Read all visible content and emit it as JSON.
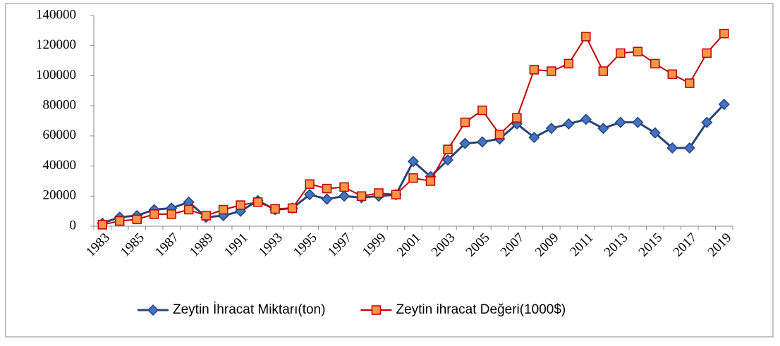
{
  "chart_data": {
    "type": "line",
    "categories": [
      "1983",
      null,
      "1985",
      null,
      "1987",
      null,
      "1989",
      null,
      "1991",
      null,
      "1993",
      null,
      "1995",
      null,
      "1997",
      null,
      "1999",
      null,
      "2001",
      null,
      "2003",
      null,
      "2005",
      null,
      "2007",
      null,
      "2009",
      null,
      "2011",
      null,
      "2013",
      null,
      "2015",
      null,
      "2017",
      null,
      "2019"
    ],
    "series": [
      {
        "name": "Zeytin İhracat Miktarı(ton)",
        "color": "#264478",
        "marker_color": "#4472c4",
        "marker": "diamond",
        "values": [
          2000,
          6000,
          7000,
          11000,
          12000,
          16000,
          6000,
          7000,
          10000,
          17000,
          11000,
          12000,
          21000,
          18000,
          20000,
          19000,
          20000,
          21000,
          43000,
          33000,
          44000,
          55000,
          56000,
          58000,
          68000,
          59000,
          65000,
          68000,
          71000,
          65000,
          69000,
          69000,
          62000,
          52000,
          52000,
          69000,
          81000
        ]
      },
      {
        "name": "Zeytin ihracat Değeri(1000$)",
        "color": "#c00000",
        "marker_color": "#f79646",
        "marker": "square",
        "values": [
          1000,
          3500,
          4500,
          8000,
          8000,
          11000,
          7000,
          11000,
          14000,
          16000,
          11500,
          12000,
          28000,
          25000,
          26000,
          20000,
          22000,
          21000,
          32000,
          30000,
          51000,
          69000,
          77000,
          61000,
          72000,
          104000,
          103000,
          108000,
          126000,
          103000,
          115000,
          116000,
          108000,
          101000,
          95000,
          115000,
          128000
        ]
      }
    ],
    "ylim": [
      0,
      140000
    ],
    "yticks": [
      0,
      20000,
      40000,
      60000,
      80000,
      100000,
      120000,
      140000
    ],
    "grid": false,
    "legend": "bottom"
  }
}
